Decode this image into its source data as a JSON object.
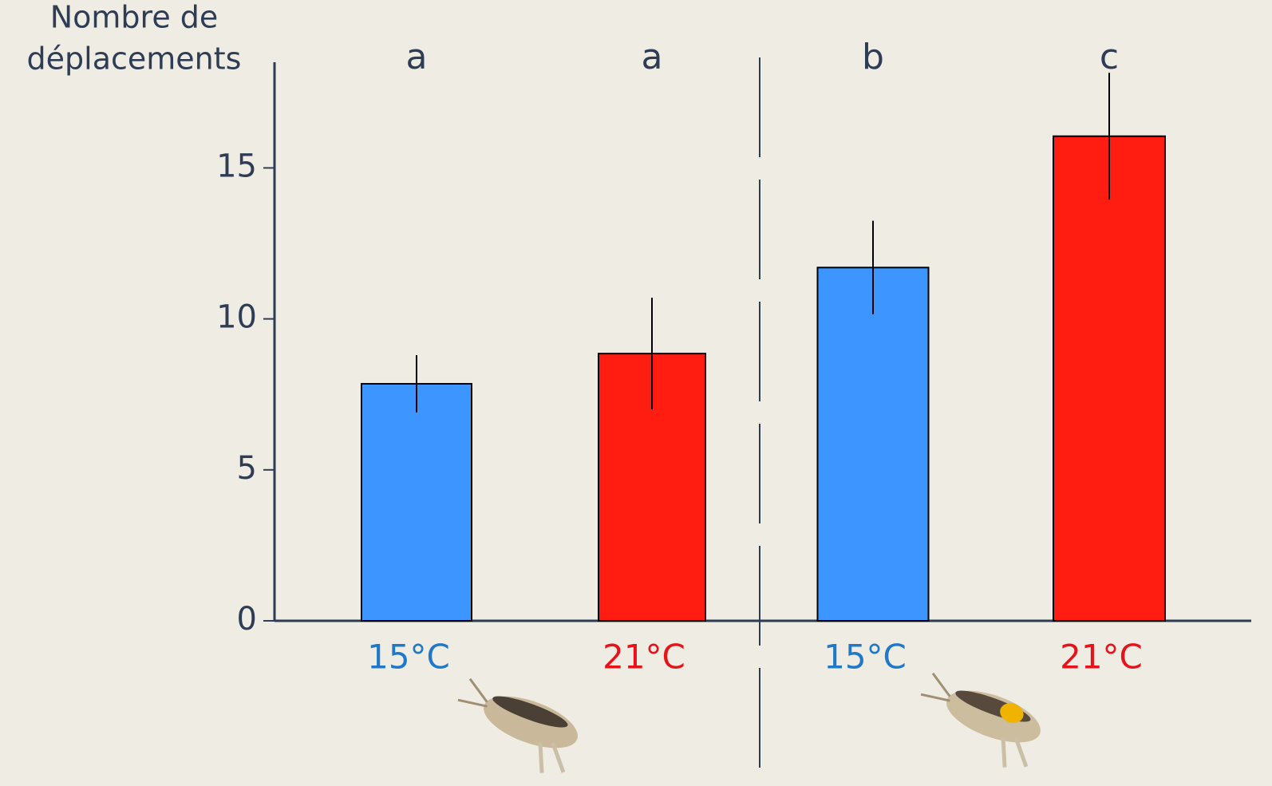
{
  "chart_data": {
    "type": "bar",
    "ylabel": [
      "Nombre de",
      "déplacements"
    ],
    "categories": [
      "15°C",
      "21°C",
      "15°C",
      "21°C"
    ],
    "values": [
      7.85,
      8.85,
      11.7,
      16.05
    ],
    "errors": [
      0.95,
      1.85,
      1.55,
      2.1
    ],
    "colors": [
      "#3d96ff",
      "#ff1c10",
      "#3d96ff",
      "#ff1c10"
    ],
    "label_colors": [
      "#1f78c8",
      "#e8121a",
      "#1f78c8",
      "#e8121a"
    ],
    "annotations": [
      "a",
      "a",
      "b",
      "c"
    ],
    "ylim": [
      0,
      18.5
    ],
    "yticks": [
      0,
      5,
      10,
      15
    ]
  }
}
